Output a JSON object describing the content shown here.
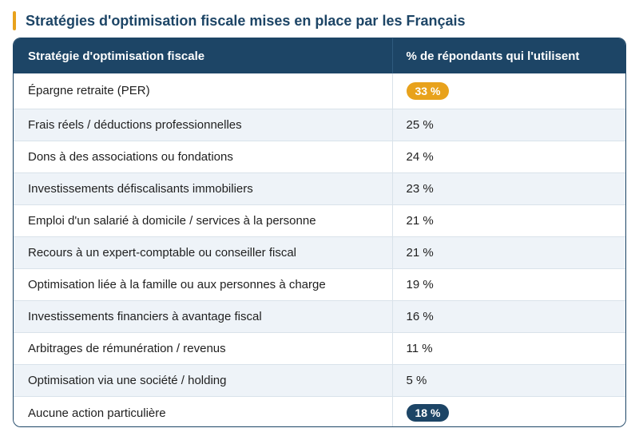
{
  "title": "Stratégies d'optimisation fiscale mises en place par les Français",
  "colors": {
    "accent": "#e8a21c",
    "header": "#1d4566",
    "zebra": "#eef3f8"
  },
  "table": {
    "headers": [
      "Stratégie d'optimisation fiscale",
      "% de répondants qui l'utilisent"
    ],
    "rows": [
      {
        "strategy": "Épargne retraite (PER)",
        "value": "33 %",
        "highlight": "orange"
      },
      {
        "strategy": "Frais réels / déductions professionnelles",
        "value": "25 %"
      },
      {
        "strategy": "Dons à des associations ou fondations",
        "value": "24 %"
      },
      {
        "strategy": "Investissements défiscalisants immobiliers",
        "value": "23 %"
      },
      {
        "strategy": "Emploi d'un salarié à domicile / services à la personne",
        "value": "21 %"
      },
      {
        "strategy": "Recours à un expert-comptable ou conseiller fiscal",
        "value": "21 %"
      },
      {
        "strategy": "Optimisation liée à la famille ou aux personnes à charge",
        "value": "19 %"
      },
      {
        "strategy": "Investissements financiers à avantage fiscal",
        "value": "16 %"
      },
      {
        "strategy": "Arbitrages de rémunération / revenus",
        "value": "11 %"
      },
      {
        "strategy": "Optimisation via une société / holding",
        "value": "5 %"
      },
      {
        "strategy": "Aucune action particulière",
        "value": "18 %",
        "highlight": "navy"
      }
    ]
  }
}
